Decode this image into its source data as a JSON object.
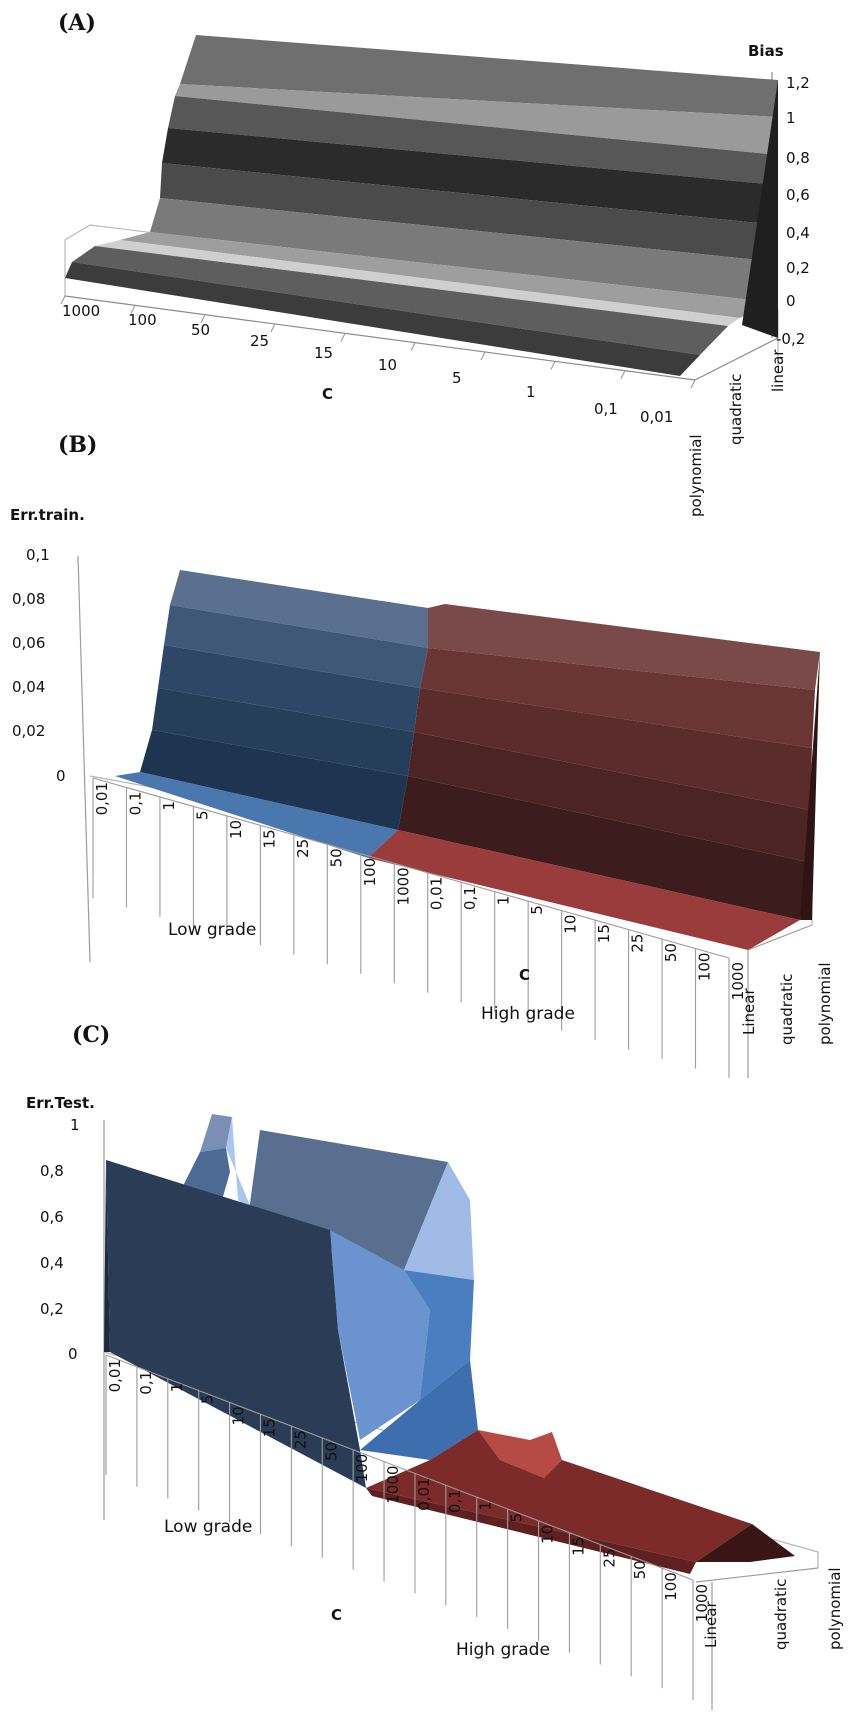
{
  "chart_data": [
    {
      "panel_label": "(A)",
      "type": "surface",
      "zlabel": "Bias",
      "xlabel": "C",
      "zticks": [
        "1,2",
        "1",
        "0,8",
        "0,6",
        "0,4",
        "0,2",
        "0",
        "-0,2"
      ],
      "x_categories": [
        "1000",
        "100",
        "50",
        "25",
        "15",
        "10",
        "5",
        "1",
        "0,1",
        "0,01"
      ],
      "y_categories": [
        "polynomial",
        "quadratic",
        "linear"
      ],
      "zlim": [
        -0.2,
        1.2
      ],
      "series": [
        {
          "name": "polynomial",
          "values": [
            0,
            0,
            0,
            0,
            0,
            0,
            0,
            0,
            0,
            0
          ]
        },
        {
          "name": "quadratic",
          "values": [
            0.02,
            0.02,
            0.02,
            0.02,
            0.02,
            0.02,
            0.02,
            0.02,
            0.02,
            0.02
          ]
        },
        {
          "name": "linear",
          "values": [
            1.2,
            1.2,
            1.2,
            1.2,
            1.2,
            1.2,
            1.2,
            1.2,
            1.2,
            1.2
          ]
        }
      ]
    },
    {
      "panel_label": "(B)",
      "type": "surface",
      "zlabel": "Err.train.",
      "xlabel": "C",
      "zticks": [
        "0,1",
        "0,08",
        "0,06",
        "0,04",
        "0,02",
        "0"
      ],
      "zlim": [
        0,
        0.1
      ],
      "groups": [
        {
          "name": "Low grade",
          "categories": [
            "0,01",
            "0,1",
            "1",
            "5",
            "10",
            "15",
            "25",
            "50",
            "100",
            "1000"
          ],
          "color": "#3d6690"
        },
        {
          "name": "High grade",
          "categories": [
            "0,01",
            "0,1",
            "1",
            "5",
            "10",
            "15",
            "25",
            "50",
            "100",
            "1000"
          ],
          "color": "#8a3434"
        }
      ],
      "y_categories": [
        "Linear",
        "quadratic",
        "polynomial"
      ],
      "series": [
        {
          "name": "Linear",
          "low_grade": [
            0,
            0,
            0,
            0,
            0,
            0,
            0,
            0,
            0,
            0
          ],
          "high_grade": [
            0,
            0,
            0,
            0,
            0,
            0,
            0,
            0,
            0,
            0
          ]
        },
        {
          "name": "quadratic",
          "low_grade": [
            0.09,
            0.09,
            0.09,
            0.09,
            0.09,
            0.09,
            0.09,
            0.09,
            0.09,
            0.09
          ],
          "high_grade": [
            0.08,
            0.08,
            0.08,
            0.08,
            0.08,
            0.08,
            0.08,
            0.08,
            0.08,
            0.08
          ]
        },
        {
          "name": "polynomial",
          "low_grade": [
            0,
            0,
            0,
            0,
            0,
            0,
            0,
            0,
            0,
            0
          ],
          "high_grade": [
            0,
            0,
            0,
            0,
            0,
            0,
            0,
            0,
            0,
            0
          ]
        }
      ]
    },
    {
      "panel_label": "(C)",
      "type": "surface",
      "zlabel": "Err.Test.",
      "xlabel": "C",
      "zticks": [
        "1",
        "0,8",
        "0,6",
        "0,4",
        "0,2",
        "0"
      ],
      "zlim": [
        0,
        1
      ],
      "groups": [
        {
          "name": "Low grade",
          "categories": [
            "0,01",
            "0,1",
            "1",
            "5",
            "10",
            "15",
            "25",
            "50",
            "100",
            "1000"
          ],
          "color": "#3a5f8a"
        },
        {
          "name": "High grade",
          "categories": [
            "0,01",
            "0,1",
            "1",
            "5",
            "10",
            "15",
            "25",
            "50",
            "100",
            "1000"
          ],
          "color": "#7a2a2a"
        }
      ],
      "y_categories": [
        "Linear",
        "quadratic",
        "polynomial"
      ],
      "series": [
        {
          "name": "Linear",
          "low_grade": [
            0.8,
            0.8,
            0.8,
            0.8,
            0.8,
            0.8,
            0.8,
            0.8,
            0.8,
            0.8
          ],
          "high_grade": [
            0.3,
            0.3,
            0.3,
            0.3,
            0.3,
            0.3,
            0.3,
            0.3,
            0.3,
            0.3
          ]
        },
        {
          "name": "quadratic",
          "low_grade": [
            0.98,
            0.98,
            0.7,
            0.95,
            0.95,
            0.95,
            0.95,
            0.95,
            0.95,
            0.95
          ],
          "high_grade": [
            0.22,
            0.22,
            0.15,
            0.15,
            0.15,
            0.15,
            0.15,
            0.15,
            0.15,
            0.15
          ]
        },
        {
          "name": "polynomial",
          "low_grade": [
            0,
            0,
            0,
            0,
            0,
            0,
            0,
            0,
            0,
            0
          ],
          "high_grade": [
            0,
            0,
            0,
            0,
            0,
            0,
            0,
            0,
            0,
            0
          ]
        }
      ]
    }
  ]
}
